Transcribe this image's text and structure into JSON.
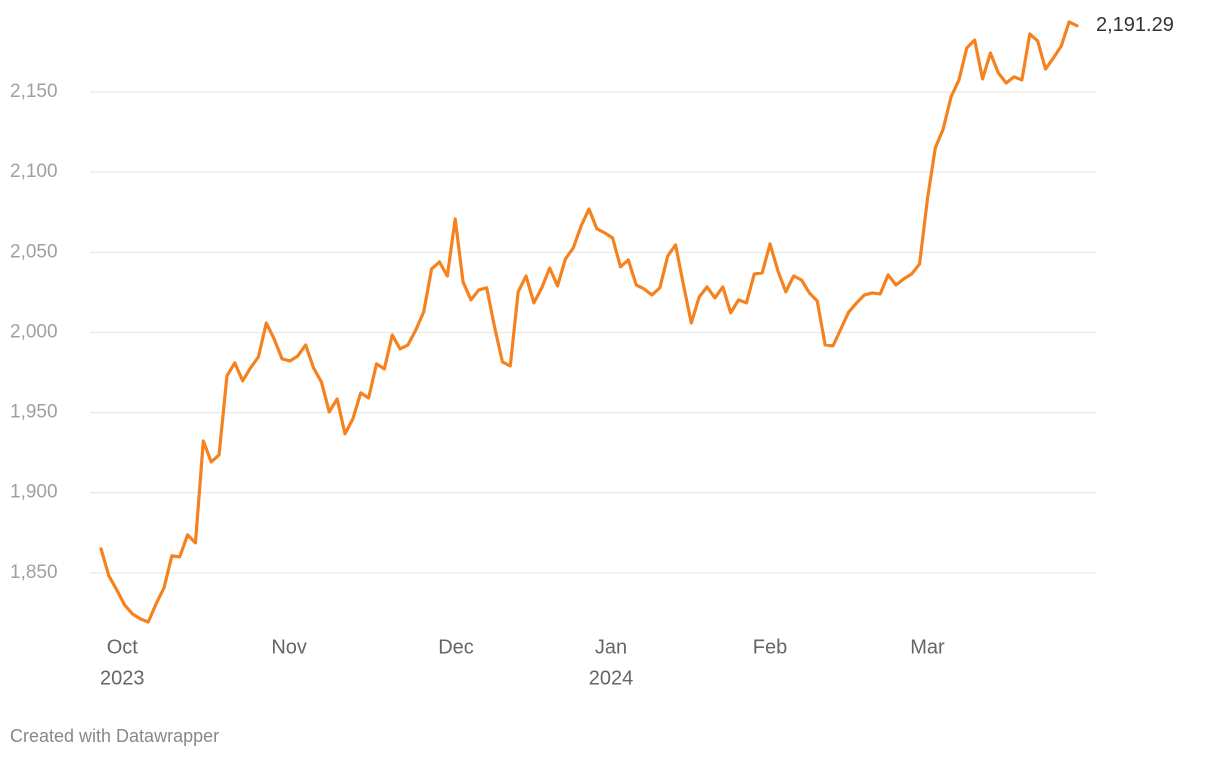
{
  "chart_data": {
    "type": "line",
    "series": [
      {
        "name": null,
        "color": "#f5821f",
        "values": [
          1865.0,
          1848.1,
          1839.4,
          1830.0,
          1824.4,
          1821.3,
          1819.4,
          1830.7,
          1840.6,
          1860.6,
          1860.0,
          1873.7,
          1868.7,
          1932.3,
          1919.2,
          1923.6,
          1972.9,
          1981.0,
          1969.8,
          1977.9,
          1984.7,
          2005.9,
          1995.9,
          1983.5,
          1982.2,
          1985.3,
          1992.2,
          1977.9,
          1969.1,
          1950.4,
          1958.5,
          1936.7,
          1946.1,
          1962.3,
          1959.1,
          1980.4,
          1977.2,
          1998.4,
          1989.7,
          1992.2,
          2001.6,
          2012.8,
          2039.6,
          2044.0,
          2035.2,
          2070.8,
          2031.5,
          2020.3,
          2026.5,
          2027.8,
          2003.4,
          1981.6,
          1979.1,
          2025.3,
          2035.2,
          2018.4,
          2027.8,
          2040.2,
          2029.0,
          2045.8,
          2052.7,
          2066.4,
          2077.0,
          2064.6,
          2062.1,
          2058.9,
          2040.9,
          2045.2,
          2029.6,
          2027.1,
          2023.4,
          2027.8,
          2047.7,
          2054.6,
          2029.6,
          2005.9,
          2022.1,
          2028.4,
          2021.5,
          2028.4,
          2012.2,
          2020.3,
          2018.4,
          2036.5,
          2037.1,
          2055.2,
          2038.4,
          2025.3,
          2035.2,
          2032.7,
          2024.6,
          2019.6,
          1992.2,
          1991.6,
          2002.2,
          2012.8,
          2018.4,
          2023.4,
          2024.6,
          2024.0,
          2035.9,
          2029.6,
          2033.4,
          2036.5,
          2042.7,
          2083.3,
          2115.1,
          2126.9,
          2146.9,
          2157.5,
          2177.4,
          2182.4,
          2158.1,
          2174.3,
          2161.9,
          2155.6,
          2159.4,
          2157.5,
          2186.2,
          2181.8,
          2164.3,
          2171.2,
          2178.7,
          2193.7,
          2191.29
        ],
        "value_labels": [
          null,
          null,
          null,
          null,
          null,
          null,
          null,
          null,
          null,
          null,
          null,
          null,
          null,
          null,
          null,
          null,
          null,
          null,
          null,
          null,
          null,
          null,
          null,
          null,
          null,
          null,
          null,
          null,
          null,
          null,
          null,
          null,
          null,
          null,
          null,
          null,
          null,
          null,
          null,
          null,
          null,
          null,
          null,
          null,
          null,
          null,
          null,
          null,
          null,
          null,
          null,
          null,
          null,
          null,
          null,
          null,
          null,
          null,
          null,
          null,
          null,
          null,
          null,
          null,
          null,
          null,
          null,
          null,
          null,
          null,
          null,
          null,
          null,
          null,
          null,
          null,
          null,
          null,
          null,
          null,
          null,
          null,
          null,
          null,
          null,
          null,
          null,
          null,
          null,
          null,
          null,
          null,
          null,
          null,
          null,
          null,
          null,
          null,
          null,
          null,
          null,
          null,
          null,
          null,
          null,
          null,
          null,
          null,
          null,
          null,
          null,
          null,
          null,
          null,
          null,
          null,
          null,
          null,
          null,
          null,
          null,
          null,
          null,
          null,
          "2,191.29"
        ]
      }
    ],
    "ylim": [
      1815,
      2198
    ],
    "yticks": [
      {
        "value": 1850,
        "label": "1,850"
      },
      {
        "value": 1900,
        "label": "1,900"
      },
      {
        "value": 1950,
        "label": "1,950"
      },
      {
        "value": 2000,
        "label": "2,000"
      },
      {
        "value": 2050,
        "label": "2,050"
      },
      {
        "value": 2100,
        "label": "2,100"
      },
      {
        "value": 2150,
        "label": "2,150"
      }
    ],
    "xticks": [
      {
        "value": 2.7,
        "label": "Oct"
      },
      {
        "value": 23.9,
        "label": "Nov"
      },
      {
        "value": 45.1,
        "label": "Dec"
      },
      {
        "value": 64.8,
        "label": "Jan"
      },
      {
        "value": 85,
        "label": "Feb"
      },
      {
        "value": 105,
        "label": "Mar"
      }
    ],
    "xticks_year": [
      {
        "value": 2.7,
        "label": "2023"
      },
      {
        "value": 64.8,
        "label": "2024"
      }
    ],
    "grid": true,
    "credit": "Created with Datawrapper"
  }
}
